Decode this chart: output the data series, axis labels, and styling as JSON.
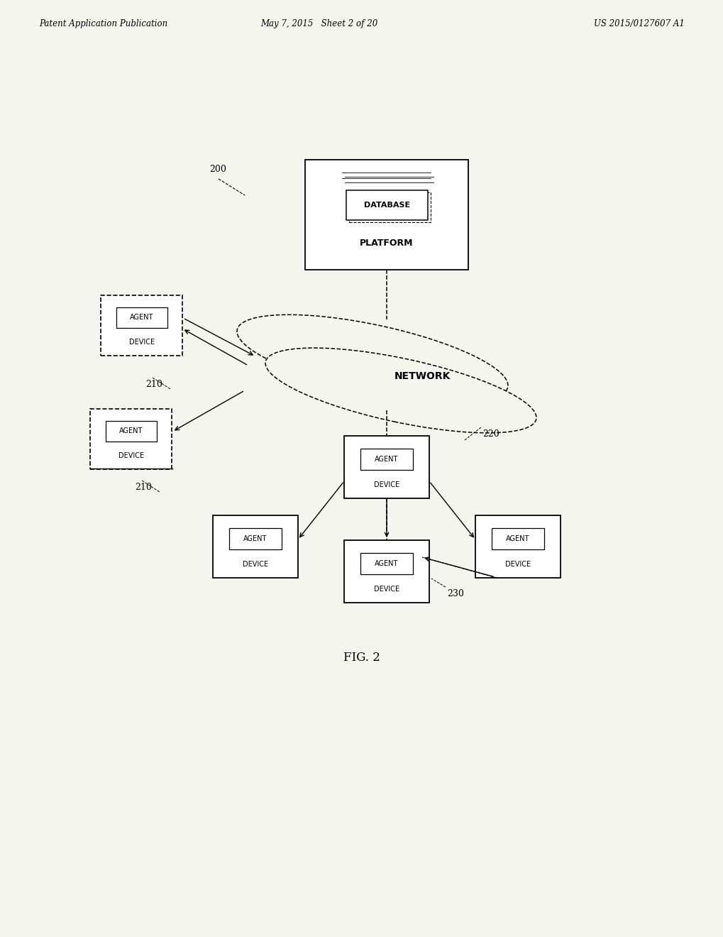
{
  "bg_color": "#f5f5f0",
  "header_left": "Patent Application Publication",
  "header_mid": "May 7, 2015   Sheet 2 of 20",
  "header_right": "US 2015/0127607 A1",
  "footer_label": "FIG. 2",
  "ref_200": "200",
  "ref_210a": "210",
  "ref_210b": "210",
  "ref_220": "220",
  "ref_230": "230",
  "db_platform_label1": "DATABASE",
  "db_platform_label2": "PLATFORM",
  "network_label": "NETWORK",
  "agent_label": "AGENT",
  "device_label": "DEVICE"
}
